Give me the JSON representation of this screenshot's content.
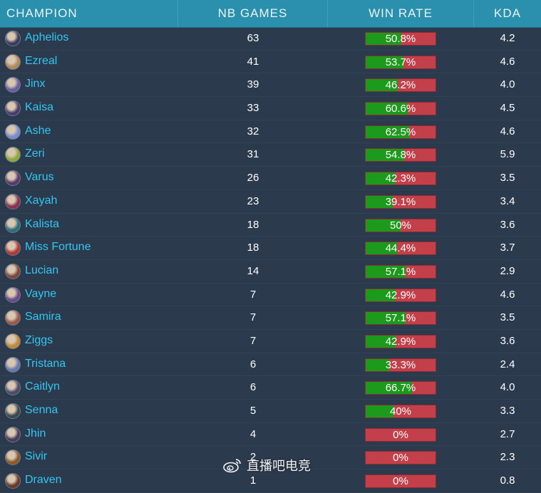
{
  "header": {
    "champion": "CHAMPION",
    "games": "NB GAMES",
    "winrate": "WIN RATE",
    "kda": "KDA"
  },
  "colors": {
    "header_bg": "#2a90ad",
    "body_bg": "#2b3a4d",
    "champion_text": "#34c6f0",
    "win_bar": "#1c9a1c",
    "loss_bar": "#c3404a"
  },
  "rows": [
    {
      "name": "Aphelios",
      "games": "63",
      "winrate": "50.8%",
      "win_fraction": 0.508,
      "kda": "4.2",
      "avatar_color": "#3b3b5c"
    },
    {
      "name": "Ezreal",
      "games": "41",
      "winrate": "53.7%",
      "win_fraction": 0.537,
      "kda": "4.6",
      "avatar_color": "#b08a5a"
    },
    {
      "name": "Jinx",
      "games": "39",
      "winrate": "46.2%",
      "win_fraction": 0.462,
      "kda": "4.0",
      "avatar_color": "#6b5fa0"
    },
    {
      "name": "Kaisa",
      "games": "33",
      "winrate": "60.6%",
      "win_fraction": 0.606,
      "kda": "4.5",
      "avatar_color": "#4a3b6e"
    },
    {
      "name": "Ashe",
      "games": "32",
      "winrate": "62.5%",
      "win_fraction": 0.625,
      "kda": "4.6",
      "avatar_color": "#7a8cd0"
    },
    {
      "name": "Zeri",
      "games": "31",
      "winrate": "54.8%",
      "win_fraction": 0.548,
      "kda": "5.9",
      "avatar_color": "#8fa83a"
    },
    {
      "name": "Varus",
      "games": "26",
      "winrate": "42.3%",
      "win_fraction": 0.423,
      "kda": "3.5",
      "avatar_color": "#5a3a6a"
    },
    {
      "name": "Xayah",
      "games": "23",
      "winrate": "39.1%",
      "win_fraction": 0.391,
      "kda": "3.4",
      "avatar_color": "#8a3050"
    },
    {
      "name": "Kalista",
      "games": "18",
      "winrate": "50%",
      "win_fraction": 0.5,
      "kda": "3.6",
      "avatar_color": "#2f6f7a"
    },
    {
      "name": "Miss Fortune",
      "games": "18",
      "winrate": "44.4%",
      "win_fraction": 0.444,
      "kda": "3.7",
      "avatar_color": "#b03a3a"
    },
    {
      "name": "Lucian",
      "games": "14",
      "winrate": "57.1%",
      "win_fraction": 0.571,
      "kda": "2.9",
      "avatar_color": "#7a4a3a"
    },
    {
      "name": "Vayne",
      "games": "7",
      "winrate": "42.9%",
      "win_fraction": 0.429,
      "kda": "4.6",
      "avatar_color": "#6a4a8a"
    },
    {
      "name": "Samira",
      "games": "7",
      "winrate": "57.1%",
      "win_fraction": 0.571,
      "kda": "3.5",
      "avatar_color": "#9a5a4a"
    },
    {
      "name": "Ziggs",
      "games": "7",
      "winrate": "42.9%",
      "win_fraction": 0.429,
      "kda": "3.6",
      "avatar_color": "#c08a3a"
    },
    {
      "name": "Tristana",
      "games": "6",
      "winrate": "33.3%",
      "win_fraction": 0.333,
      "kda": "2.4",
      "avatar_color": "#6a7ab0"
    },
    {
      "name": "Caitlyn",
      "games": "6",
      "winrate": "66.7%",
      "win_fraction": 0.667,
      "kda": "4.0",
      "avatar_color": "#4a4a6a"
    },
    {
      "name": "Senna",
      "games": "5",
      "winrate": "40%",
      "win_fraction": 0.4,
      "kda": "3.3",
      "avatar_color": "#3a4a4a"
    },
    {
      "name": "Jhin",
      "games": "4",
      "winrate": "0%",
      "win_fraction": 0,
      "kda": "2.7",
      "avatar_color": "#4a3a5a"
    },
    {
      "name": "Sivir",
      "games": "2",
      "winrate": "0%",
      "win_fraction": 0,
      "kda": "2.3",
      "avatar_color": "#8a5a2a"
    },
    {
      "name": "Draven",
      "games": "1",
      "winrate": "0%",
      "win_fraction": 0,
      "kda": "0.8",
      "avatar_color": "#6a3a2a"
    }
  ],
  "watermark": {
    "text": "直播吧电竞",
    "icon": "weibo-icon"
  }
}
